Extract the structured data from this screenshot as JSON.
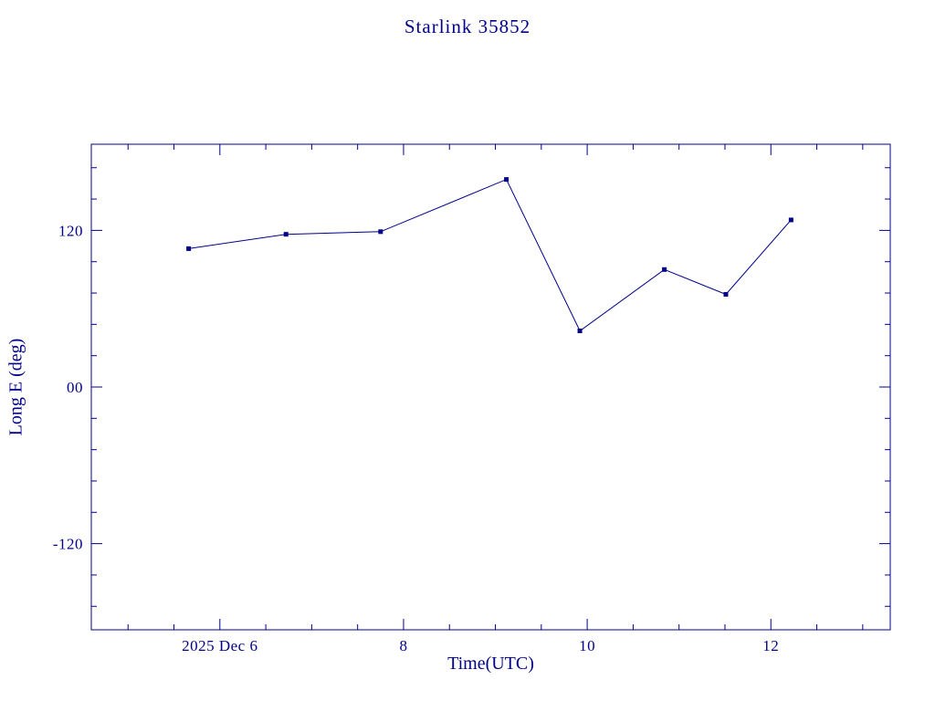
{
  "chart_data": {
    "type": "line",
    "title": "Starlink 35852",
    "xlabel": "Time(UTC)",
    "ylabel": "Long E (deg)",
    "series": [
      {
        "name": "Long E (deg)",
        "x": [
          5.66,
          6.72,
          7.75,
          9.12,
          9.92,
          10.84,
          11.51,
          12.22
        ],
        "y": [
          106,
          117,
          119,
          159,
          43,
          90,
          71,
          128
        ]
      }
    ],
    "xlim": [
      4.6,
      13.3
    ],
    "ylim": [
      -186,
      186
    ],
    "x_ticks": [
      {
        "value": 6,
        "label": "2025 Dec  6"
      },
      {
        "value": 8,
        "label": "8"
      },
      {
        "value": 10,
        "label": "10"
      },
      {
        "value": 12,
        "label": "12"
      }
    ],
    "y_ticks": [
      {
        "value": 120,
        "label": "120"
      },
      {
        "value": 0,
        "label": "00"
      },
      {
        "value": -120,
        "label": "-120"
      }
    ],
    "x_minor_step": 0.5,
    "y_minor_step": 24,
    "line_color": "#00008B",
    "marker": "square",
    "grid": false,
    "legend": "none"
  }
}
